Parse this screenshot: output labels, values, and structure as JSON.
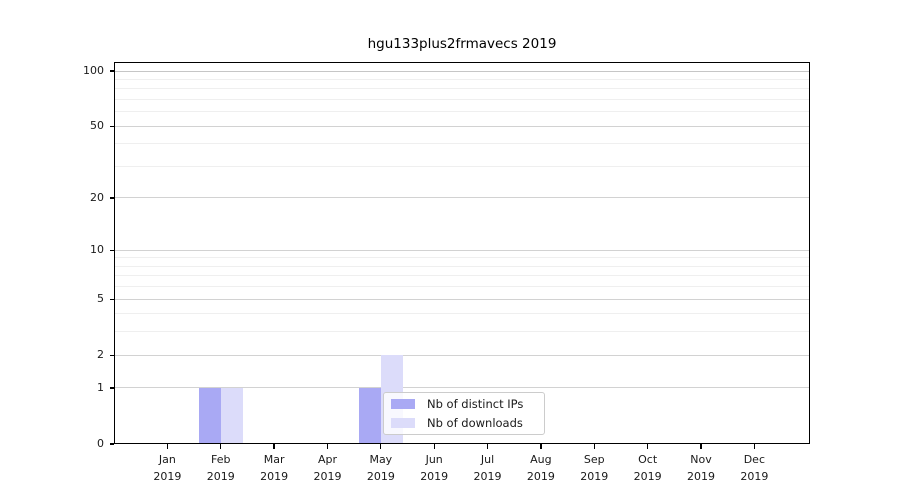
{
  "chart_data": {
    "type": "bar",
    "title": "hgu133plus2frmavecs 2019",
    "categories": [
      "Jan",
      "Feb",
      "Mar",
      "Apr",
      "May",
      "Jun",
      "Jul",
      "Aug",
      "Sep",
      "Oct",
      "Nov",
      "Dec"
    ],
    "x_tick_label_year": "2019",
    "series": [
      {
        "name": "Nb of distinct IPs",
        "color": "#a9a9f4",
        "values": [
          0,
          1,
          0,
          0,
          1,
          0,
          0,
          0,
          0,
          0,
          0,
          0
        ]
      },
      {
        "name": "Nb of downloads",
        "color": "#dcdcfa",
        "values": [
          0,
          1,
          0,
          0,
          2,
          0,
          0,
          0,
          0,
          0,
          0,
          0
        ]
      }
    ],
    "xlabel": "",
    "ylabel": "",
    "yscale": "log1p",
    "ylim": [
      0,
      112
    ],
    "yticks_labeled": [
      0,
      1,
      2,
      5,
      10,
      20,
      50,
      100
    ],
    "gridline_values": [
      1,
      2,
      3,
      4,
      5,
      6,
      7,
      8,
      9,
      10,
      20,
      30,
      40,
      50,
      60,
      70,
      80,
      90,
      100
    ],
    "grid": "horizontal",
    "legend": {
      "position": "inside-lower-center",
      "entries": [
        "Nb of distinct IPs",
        "Nb of downloads"
      ]
    },
    "colors": {
      "grid_major": "#d2d2d2",
      "grid_top": "#c6c6c6",
      "grid_minor": "#efefef",
      "spine": "#000000",
      "text": "#1a1a1a",
      "legend_border": "#cccccc",
      "legend_bg": "rgba(255,255,255,0.8)"
    }
  }
}
